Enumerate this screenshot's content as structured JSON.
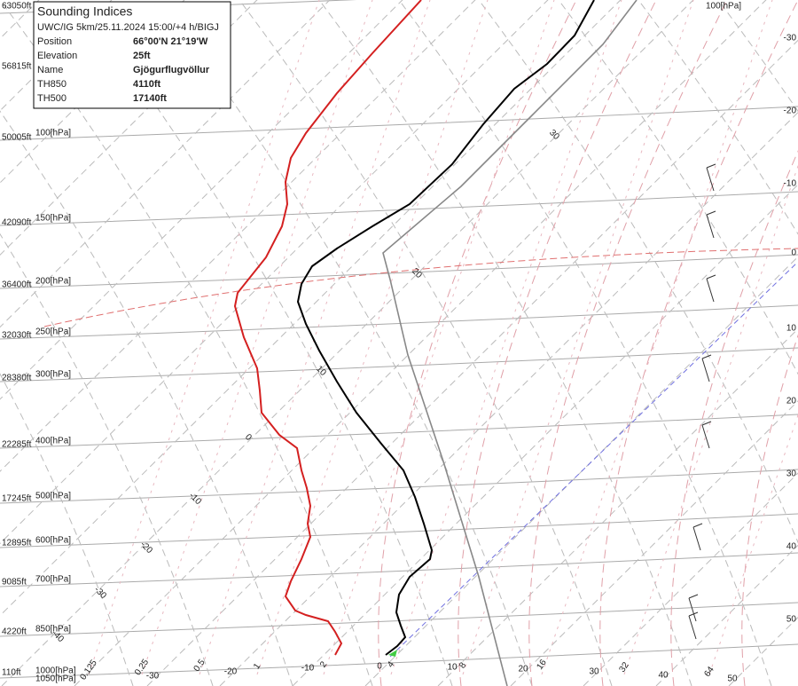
{
  "info_box": {
    "title": "Sounding Indices",
    "subtitle": "UWC/IG 5km/25.11.2024 15:00/+4 h/BIGJ",
    "rows": [
      [
        "Position",
        "66°00'N 21°19'W"
      ],
      [
        "Elevation",
        "25ft"
      ],
      [
        "Name",
        "Gjögurflugvöllur"
      ],
      [
        "TH850",
        "4110ft"
      ],
      [
        "TH500",
        "17140ft"
      ]
    ]
  },
  "altitude_labels": [
    "63050ft",
    "56815ft",
    "50005ft",
    "42090ft",
    "36400ft",
    "32030ft",
    "28380ft",
    "22285ft",
    "17245ft",
    "12895ft",
    "9085ft",
    "4220ft",
    "110ft"
  ],
  "pressure_labels": [
    "100[hPa]",
    "150[hPa]",
    "200[hPa]",
    "250[hPa]",
    "300[hPa]",
    "400[hPa]",
    "500[hPa]",
    "600[hPa]",
    "700[hPa]",
    "850[hPa]",
    "1000[hPa]",
    "1050[hPa]"
  ],
  "right_temperature_labels": [
    "-30",
    "-20",
    "-10",
    "0",
    "10",
    "20",
    "30",
    "40",
    "50"
  ],
  "bottom_temperature_labels": [
    "-30",
    "-20",
    "-10",
    "0",
    "10",
    "20",
    "30",
    "40",
    "50"
  ],
  "mixing_ratio_labels": [
    "0.125",
    "0.25",
    "0.5",
    "1",
    "2",
    "4",
    "8",
    "16",
    "32",
    "64"
  ],
  "isotherm_labels": [
    "30",
    "20",
    "10",
    "0",
    "-10",
    "-20",
    "-30",
    "-40"
  ]
}
